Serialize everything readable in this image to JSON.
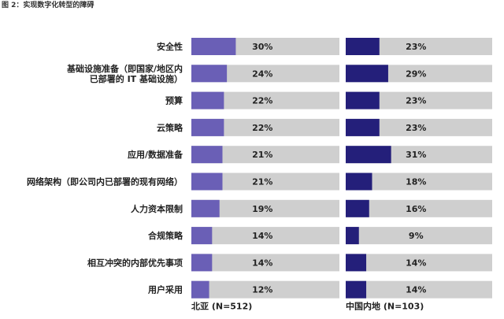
{
  "title": "图 2：实现数字化转型的障碍",
  "chart_data": [
    {
      "type": "bar",
      "orientation": "horizontal",
      "title": "北亚 (N=512)",
      "categories": [
        [
          "安全性"
        ],
        [
          "基础设施准备（即国家/地区内",
          "已部署的 IT 基础设施）"
        ],
        [
          "预算"
        ],
        [
          "云策略"
        ],
        [
          "应用/数据准备"
        ],
        [
          "网络架构（即公司内已部署的现有网络）"
        ],
        [
          "人力资本限制"
        ],
        [
          "合规策略"
        ],
        [
          "相互冲突的内部优先事项"
        ],
        [
          "用户采用"
        ]
      ],
      "values": [
        30,
        24,
        22,
        22,
        21,
        21,
        19,
        14,
        14,
        12
      ],
      "value_labels": [
        "30%",
        "24%",
        "22%",
        "22%",
        "21%",
        "21%",
        "19%",
        "14%",
        "14%",
        "12%"
      ],
      "xlim": [
        0,
        100
      ],
      "color": "#6a5fb6",
      "track_color": "#cfcfcf"
    },
    {
      "type": "bar",
      "orientation": "horizontal",
      "title": "中国内地 (N=103)",
      "categories": [
        [
          "安全性"
        ],
        [
          "基础设施准备（即国家/地区内",
          "已部署的 IT 基础设施）"
        ],
        [
          "预算"
        ],
        [
          "云策略"
        ],
        [
          "应用/数据准备"
        ],
        [
          "网络架构（即公司内已部署的现有网络）"
        ],
        [
          "人力资本限制"
        ],
        [
          "合规策略"
        ],
        [
          "相互冲突的内部优先事项"
        ],
        [
          "用户采用"
        ]
      ],
      "values": [
        23,
        29,
        23,
        23,
        31,
        18,
        16,
        9,
        14,
        14
      ],
      "value_labels": [
        "23%",
        "29%",
        "23%",
        "23%",
        "31%",
        "18%",
        "16%",
        "9%",
        "14%",
        "14%"
      ],
      "xlim": [
        0,
        100
      ],
      "color": "#241f7a",
      "track_color": "#cfcfcf"
    }
  ]
}
